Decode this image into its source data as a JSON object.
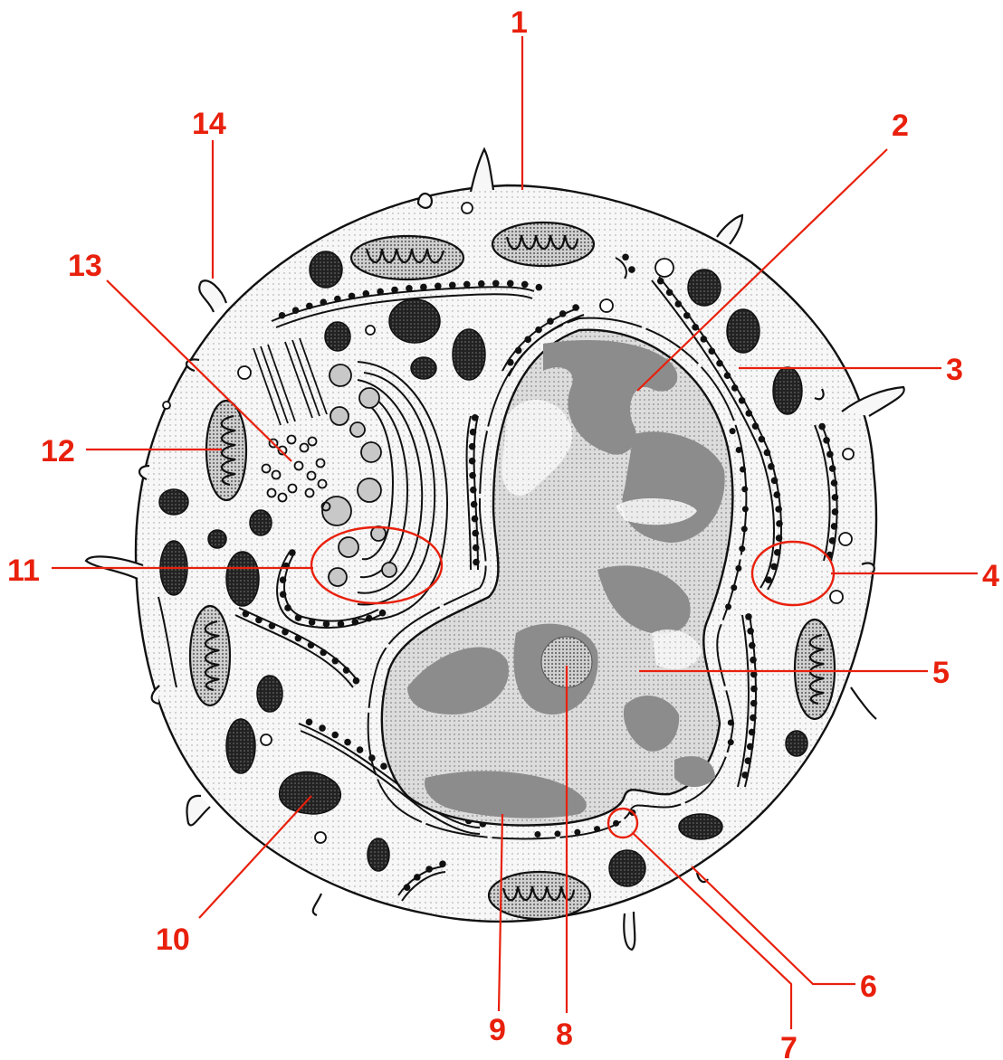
{
  "diagram": {
    "colors": {
      "label": "#e8200c",
      "outline": "#111111",
      "cytoplasm": "#f4f4f4",
      "heterochromatin": "#8c8c8c",
      "euchromatin": "#e3e3e3",
      "dark_granule": "#1a1a1a",
      "golgi_vesicle": "#c8c8c8"
    },
    "labels": [
      "1",
      "2",
      "3",
      "4",
      "5",
      "6",
      "7",
      "8",
      "9",
      "10",
      "11",
      "12",
      "13",
      "14"
    ]
  }
}
